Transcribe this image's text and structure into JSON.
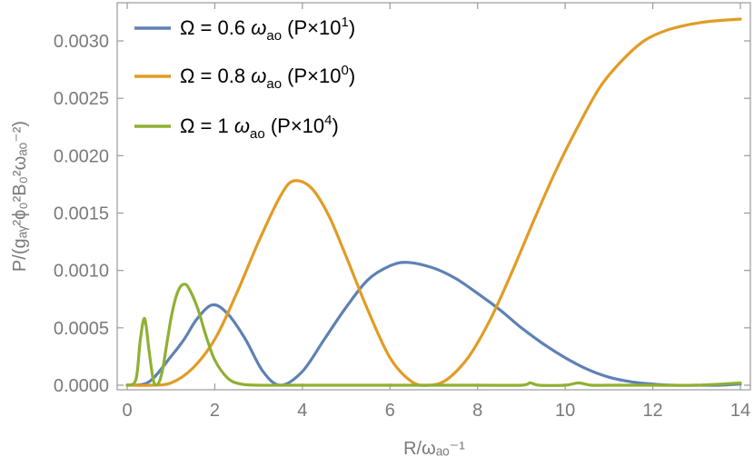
{
  "chart_data": {
    "type": "line",
    "ylabel": "P/(gₐᵧ²ϕ₀²B₀²ωₐₒ⁻²)",
    "xlabel": "R/ωₐₒ⁻¹",
    "xlim": [
      0,
      14
    ],
    "ylim": [
      0,
      0.0032
    ],
    "x_ticks": [
      "0",
      "2",
      "4",
      "6",
      "8",
      "10",
      "12",
      "14"
    ],
    "y_ticks": [
      "0.0000",
      "0.0005",
      "0.0010",
      "0.0015",
      "0.0020",
      "0.0025",
      "0.0030"
    ],
    "grid": false,
    "legend_position": "top-left",
    "series": [
      {
        "name": "Ω = 0.6 ωao (P×10¹)",
        "legend": {
          "pre": "Ω = 0.6 ",
          "omega": "ω",
          "sub": "ao",
          "post": " (P×10",
          "sup": "1",
          "close": ")"
        },
        "color": "#5e81b5",
        "x": [
          0,
          0.5,
          1.0,
          1.3,
          1.6,
          1.95,
          2.3,
          2.7,
          3.1,
          3.5,
          4.0,
          4.5,
          5.0,
          5.5,
          6.0,
          6.4,
          7.0,
          7.5,
          8.0,
          8.5,
          9.0,
          9.5,
          10.0,
          10.5,
          11.0,
          11.5,
          12.0,
          12.5,
          13.0,
          13.5,
          14.0
        ],
        "y": [
          0.0,
          3e-05,
          0.00025,
          0.0004,
          0.00058,
          0.0007,
          0.00062,
          0.0004,
          0.00012,
          0.0,
          0.00012,
          0.0004,
          0.00068,
          0.00092,
          0.00104,
          0.00107,
          0.00102,
          0.00093,
          0.0008,
          0.00066,
          0.0005,
          0.00036,
          0.00024,
          0.00014,
          7e-05,
          3e-05,
          1e-05,
          0.0,
          0.0,
          0.0,
          1e-05
        ]
      },
      {
        "name": "Ω = 0.8 ωao (P×10⁰)",
        "legend": {
          "pre": "Ω = 0.8 ",
          "omega": "ω",
          "sub": "ao",
          "post": " (P×10",
          "sup": "0",
          "close": ")"
        },
        "color": "#e19c24",
        "x": [
          0,
          0.5,
          1.0,
          1.5,
          2.0,
          2.5,
          3.0,
          3.5,
          3.8,
          4.2,
          4.6,
          5.0,
          5.5,
          6.0,
          6.5,
          6.9,
          7.3,
          7.8,
          8.3,
          8.8,
          9.3,
          9.8,
          10.3,
          10.8,
          11.3,
          11.8,
          12.3,
          12.8,
          13.3,
          14.0
        ],
        "y": [
          0.0,
          0.0,
          2e-05,
          0.00015,
          0.0004,
          0.0008,
          0.00125,
          0.00165,
          0.00178,
          0.00172,
          0.00148,
          0.00112,
          0.00065,
          0.00024,
          3e-05,
          0.0,
          5e-05,
          0.00025,
          0.00058,
          0.001,
          0.00145,
          0.00188,
          0.00226,
          0.0026,
          0.00283,
          0.003,
          0.00309,
          0.00314,
          0.00317,
          0.00319
        ]
      },
      {
        "name": "Ω = 1 ωao (P×10⁴)",
        "legend": {
          "pre": "Ω = 1 ",
          "omega": "ω",
          "sub": "ao",
          "post": " (P×10",
          "sup": "4",
          "close": ")"
        },
        "color": "#8fb032",
        "x": [
          0,
          0.2,
          0.3,
          0.4,
          0.5,
          0.6,
          0.7,
          0.8,
          0.9,
          1.0,
          1.1,
          1.2,
          1.3,
          1.4,
          1.6,
          1.8,
          2.0,
          2.3,
          2.6,
          3.0,
          3.5,
          4.0,
          5.0,
          6.0,
          7.0,
          8.0,
          9.0,
          9.2,
          9.4,
          10.0,
          10.3,
          10.6,
          11.0,
          12.0,
          13.0,
          14.0
        ],
        "y": [
          0.0,
          5e-05,
          0.0004,
          0.00058,
          0.0003,
          4e-05,
          1e-05,
          0.00012,
          0.00035,
          0.00058,
          0.00075,
          0.00085,
          0.00088,
          0.00085,
          0.00068,
          0.00043,
          0.00022,
          6e-05,
          1e-05,
          0.0,
          0.0,
          0.0,
          0.0,
          0.0,
          0.0,
          0.0,
          0.0,
          2e-05,
          0.0,
          0.0,
          2e-05,
          0.0,
          0.0,
          0.0,
          0.0,
          2e-05
        ]
      }
    ]
  }
}
